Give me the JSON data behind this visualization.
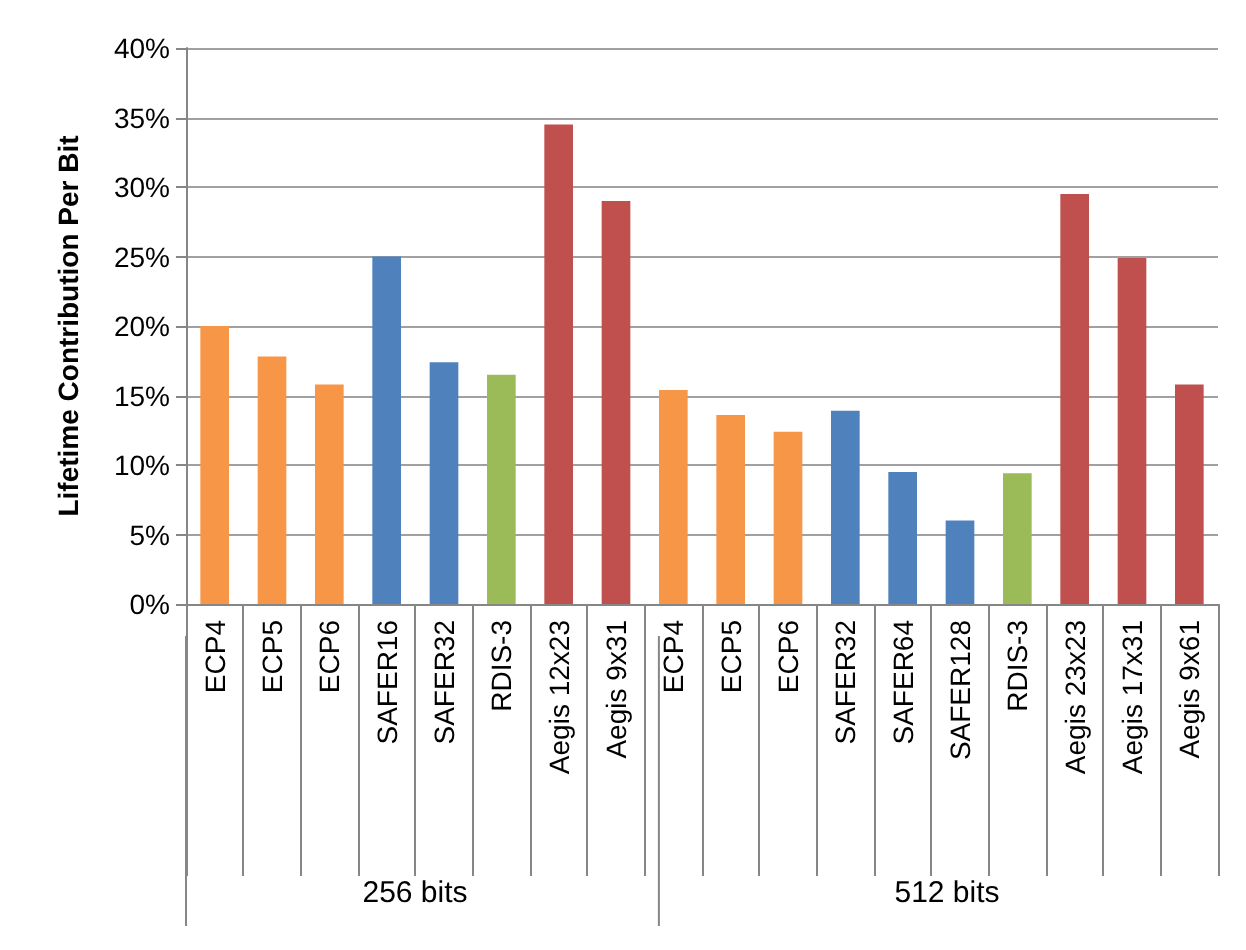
{
  "chart_data": {
    "type": "bar",
    "ylabel": "Lifetime Contribution Per Bit",
    "categories": [
      "ECP4",
      "ECP5",
      "ECP6",
      "SAFER16",
      "SAFER32",
      "RDIS-3",
      "Aegis 12x23",
      "Aegis 9x31",
      "ECP4",
      "ECP5",
      "ECP6",
      "SAFER32",
      "SAFER64",
      "SAFER128",
      "RDIS-3",
      "Aegis 23x23",
      "Aegis 17x31",
      "Aegis 9x61"
    ],
    "values": [
      20,
      17.8,
      15.8,
      25,
      17.4,
      16.5,
      34.5,
      29,
      15.4,
      13.6,
      12.4,
      13.9,
      9.5,
      6,
      9.4,
      29.5,
      24.9,
      15.8
    ],
    "colors": [
      "#f79646",
      "#f79646",
      "#f79646",
      "#4f81bd",
      "#4f81bd",
      "#9bbb59",
      "#c0504d",
      "#c0504d",
      "#f79646",
      "#f79646",
      "#f79646",
      "#4f81bd",
      "#4f81bd",
      "#4f81bd",
      "#9bbb59",
      "#c0504d",
      "#c0504d",
      "#c0504d"
    ],
    "ylim": [
      0,
      40
    ],
    "yticks": [
      {
        "value": 0,
        "label": "0%"
      },
      {
        "value": 5,
        "label": "5%"
      },
      {
        "value": 10,
        "label": "10%"
      },
      {
        "value": 15,
        "label": "15%"
      },
      {
        "value": 20,
        "label": "20%"
      },
      {
        "value": 25,
        "label": "25%"
      },
      {
        "value": 30,
        "label": "30%"
      },
      {
        "value": 35,
        "label": "35%"
      },
      {
        "value": 40,
        "label": "40%"
      }
    ],
    "grid": "y",
    "annotations": [
      "256 bits",
      "512 bits"
    ]
  }
}
